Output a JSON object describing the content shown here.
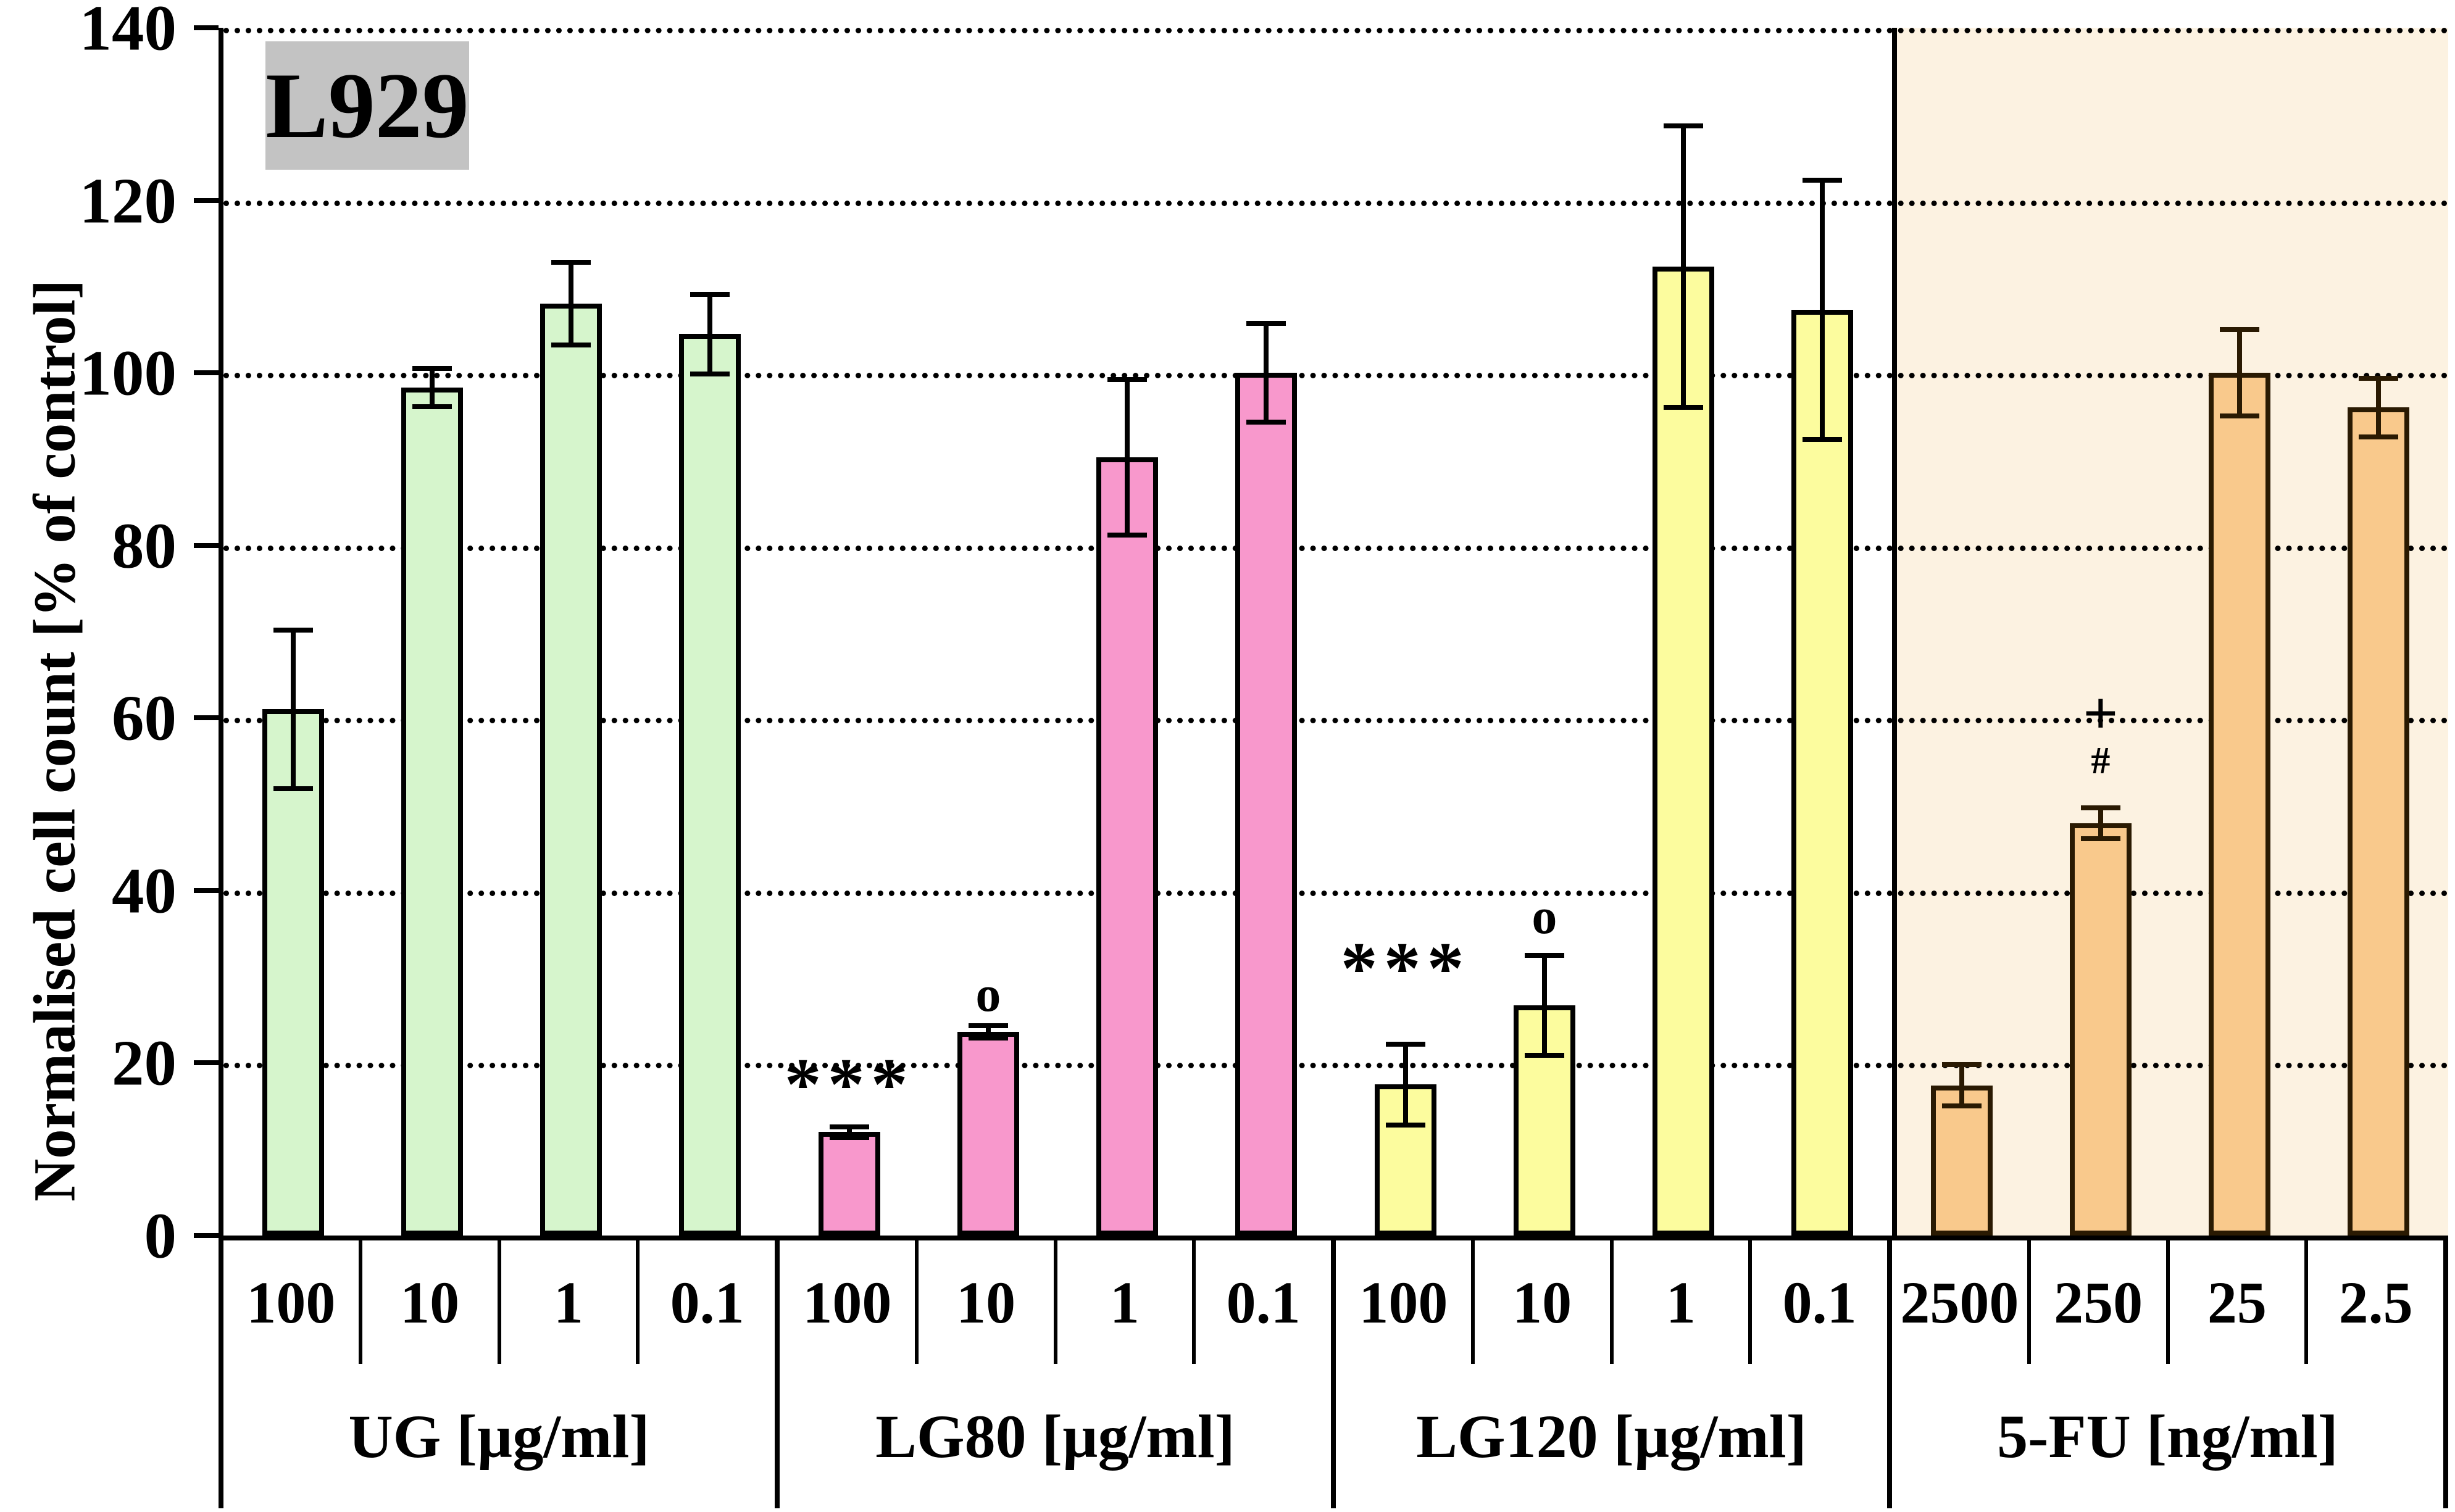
{
  "title_box": {
    "label": "L929",
    "bg_color": "#c3c3c3"
  },
  "chart_data": {
    "type": "bar",
    "title": "L929",
    "ylabel": "Normalised cell count [% of control]",
    "xlabel": "",
    "ylim": [
      0,
      140
    ],
    "ytick_step": 20,
    "yticks": [
      0,
      20,
      40,
      60,
      80,
      100,
      120,
      140
    ],
    "grid": "horizontal dotted lines at every 20, black",
    "legend_position": "none",
    "axis_color": "#000000",
    "groups": [
      {
        "label": "UG [µg/ml]",
        "fill": "#d6f5cc",
        "stroke": "#000000",
        "categories": [
          "100",
          "10",
          "1",
          "0.1"
        ],
        "values": [
          61.0,
          98.3,
          108.0,
          104.5
        ],
        "errors": [
          9.2,
          2.2,
          4.8,
          4.6
        ],
        "annotations": [
          [],
          [],
          [],
          []
        ]
      },
      {
        "label": "LG80 [µg/ml]",
        "fill": "#f898cc",
        "stroke": "#000000",
        "categories": [
          "100",
          "10",
          "1",
          "0.1"
        ],
        "values": [
          12.0,
          23.6,
          90.2,
          100.0
        ],
        "errors": [
          0.6,
          0.7,
          9.0,
          5.7
        ],
        "annotations": [
          [
            {
              "text": "***",
              "at": 17.5,
              "style": "stars"
            }
          ],
          [
            {
              "text": "o",
              "at": 28.0,
              "style": "ring"
            }
          ],
          [],
          []
        ]
      },
      {
        "label": "LG120 [µg/ml]",
        "fill": "#fcfc9e",
        "stroke": "#000000",
        "categories": [
          "100",
          "10",
          "1",
          "0.1"
        ],
        "values": [
          17.5,
          26.7,
          112.3,
          107.3
        ],
        "errors": [
          4.7,
          5.8,
          16.3,
          15.0
        ],
        "annotations": [
          [
            {
              "text": "***",
              "at": 31.0,
              "style": "stars"
            }
          ],
          [
            {
              "text": "o",
              "at": 37.0,
              "style": "ring"
            }
          ],
          [],
          []
        ]
      },
      {
        "label": "5-FU [ng/ml]",
        "fill": "#f9c98c",
        "stroke": "#2a1a02",
        "panel_bg": "#fcf2e1",
        "categories": [
          "2500",
          "250",
          "25",
          "2.5"
        ],
        "values": [
          17.4,
          47.8,
          100.0,
          96.0
        ],
        "errors": [
          2.4,
          1.8,
          5.0,
          3.4
        ],
        "annotations": [
          [],
          [
            {
              "text": "+",
              "at": 60.5,
              "style": "plus"
            },
            {
              "text": "#",
              "at": 55.0,
              "style": "hash"
            }
          ],
          [],
          []
        ]
      }
    ]
  }
}
